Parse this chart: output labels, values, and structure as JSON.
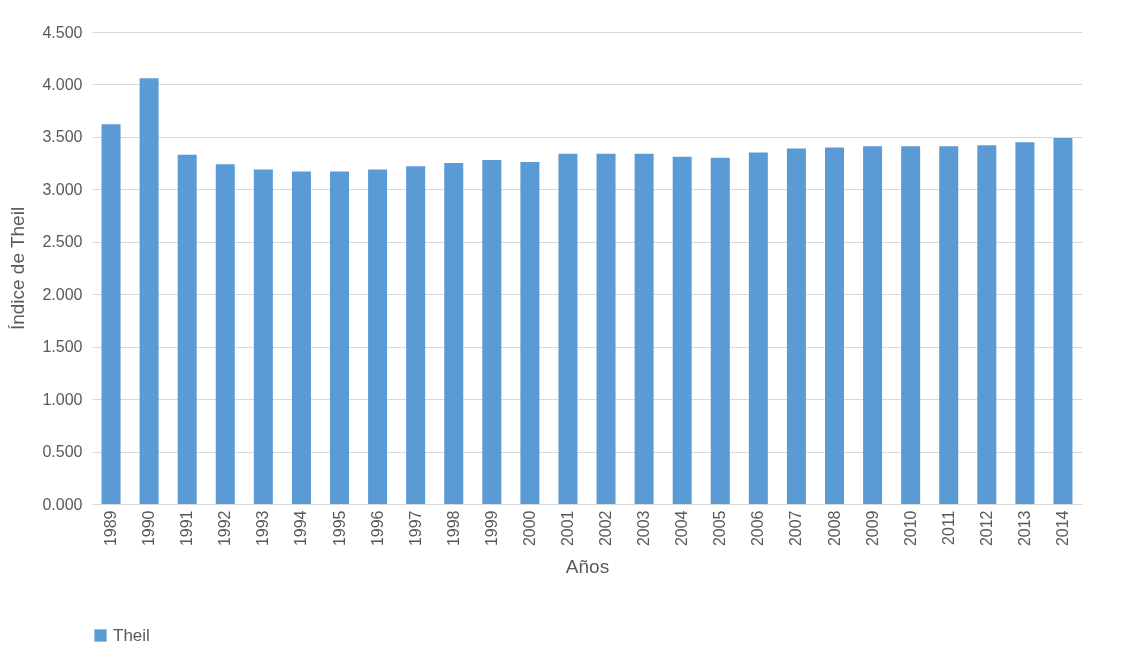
{
  "chart_data": {
    "type": "bar",
    "xlabel": "Años",
    "ylabel": "Índice de Theil",
    "categories": [
      "1989",
      "1990",
      "1991",
      "1992",
      "1993",
      "1994",
      "1995",
      "1996",
      "1997",
      "1998",
      "1999",
      "2000",
      "2001",
      "2002",
      "2003",
      "2004",
      "2005",
      "2006",
      "2007",
      "2008",
      "2009",
      "2010",
      "2011",
      "2012",
      "2013",
      "2014"
    ],
    "series": [
      {
        "name": "Theil",
        "color": "#5b9bd5",
        "values": [
          3.62,
          4.06,
          3.33,
          3.24,
          3.19,
          3.17,
          3.17,
          3.19,
          3.22,
          3.25,
          3.28,
          3.26,
          3.34,
          3.34,
          3.34,
          3.31,
          3.3,
          3.35,
          3.39,
          3.4,
          3.41,
          3.41,
          3.41,
          3.42,
          3.45,
          3.49
        ]
      }
    ],
    "ylim": [
      0,
      4.5
    ],
    "yticks": [
      {
        "value": 0,
        "label": "0.000"
      },
      {
        "value": 0.5,
        "label": "0.500"
      },
      {
        "value": 1,
        "label": "1.000"
      },
      {
        "value": 1.5,
        "label": "1.500"
      },
      {
        "value": 2,
        "label": "2.000"
      },
      {
        "value": 2.5,
        "label": "2.500"
      },
      {
        "value": 3,
        "label": "3.000"
      },
      {
        "value": 3.5,
        "label": "3.500"
      },
      {
        "value": 4,
        "label": "4.000"
      },
      {
        "value": 4.5,
        "label": "4.500"
      }
    ],
    "grid": "y",
    "legend": "bottom"
  }
}
